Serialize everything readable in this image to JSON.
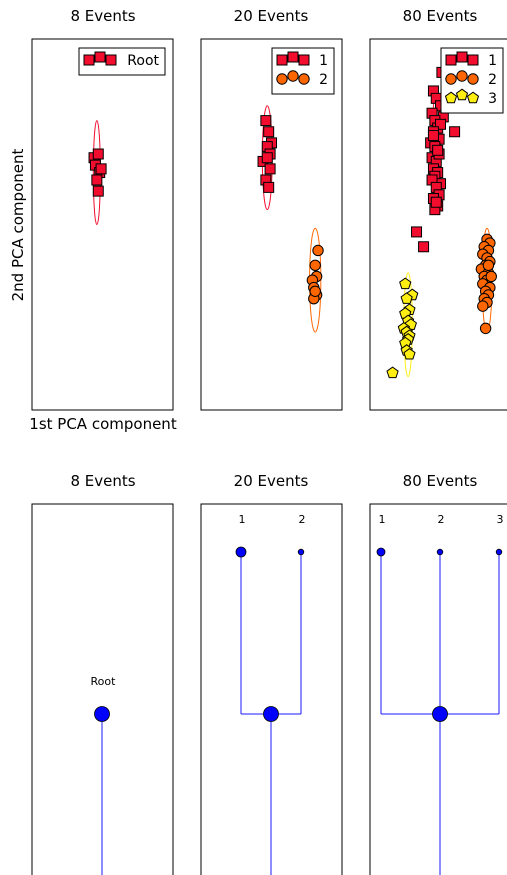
{
  "colors": {
    "cluster_1": "#f20d2e",
    "cluster_2": "#ff6600",
    "cluster_3": "#ffee11",
    "tree_line": "#1a1aff",
    "tree_node": "#0000ff"
  },
  "axes": {
    "xlabel": "1st PCA component",
    "ylabel": "2nd PCA component"
  },
  "chart_data": [
    {
      "type": "scatter",
      "title": "8 Events",
      "xlim": [
        0,
        10
      ],
      "ylim": [
        0,
        10
      ],
      "legend": {
        "placement": "top-right",
        "entries": [
          "Root"
        ]
      },
      "series": [
        {
          "name": "Root",
          "marker": "square",
          "color": "#f20d2e",
          "x": [
            4.4,
            4.7,
            4.5,
            4.8,
            4.6,
            4.9,
            4.7
          ],
          "y": [
            6.8,
            6.9,
            6.6,
            6.4,
            6.2,
            6.5,
            5.9
          ],
          "ellipse": {
            "cx": 4.6,
            "cy": 6.4,
            "rx": 0.25,
            "ry": 1.4
          }
        }
      ]
    },
    {
      "type": "scatter",
      "title": "20 Events",
      "xlim": [
        0,
        10
      ],
      "ylim": [
        0,
        10
      ],
      "legend": {
        "placement": "top-right",
        "entries": [
          "1",
          "2"
        ]
      },
      "series": [
        {
          "name": "1",
          "marker": "square",
          "color": "#f20d2e",
          "x": [
            4.6,
            4.8,
            5.0,
            4.7,
            4.9,
            4.4,
            4.7,
            4.9,
            4.6,
            4.8
          ],
          "y": [
            7.8,
            7.5,
            7.2,
            7.1,
            6.9,
            6.7,
            6.8,
            6.5,
            6.2,
            6.0
          ],
          "ellipse": {
            "cx": 4.7,
            "cy": 6.8,
            "rx": 0.35,
            "ry": 1.4
          }
        },
        {
          "name": "2",
          "marker": "circle",
          "color": "#ff6600",
          "x": [
            8.3,
            8.1,
            8.2,
            7.9,
            8.0,
            8.2,
            8.0,
            8.1
          ],
          "y": [
            4.3,
            3.9,
            3.6,
            3.5,
            3.3,
            3.1,
            3.0,
            3.2
          ],
          "ellipse": {
            "cx": 8.1,
            "cy": 3.5,
            "rx": 0.4,
            "ry": 1.4
          }
        }
      ]
    },
    {
      "type": "scatter",
      "title": "80 Events",
      "xlim": [
        0,
        10
      ],
      "ylim": [
        0,
        10
      ],
      "legend": {
        "placement": "top-right",
        "entries": [
          "1",
          "2",
          "3"
        ]
      },
      "series": [
        {
          "name": "1",
          "marker": "square",
          "color": "#f20d2e",
          "x": [
            4.5,
            4.7,
            5.0,
            5.2,
            4.4,
            4.6,
            4.8,
            5.0,
            4.5,
            4.9,
            4.3,
            4.6,
            4.8,
            4.4,
            4.7,
            4.9,
            4.5,
            4.8,
            4.6,
            5.0,
            4.4,
            4.7,
            4.9,
            4.5,
            4.8,
            4.6,
            4.7,
            4.5,
            4.8,
            5.1,
            6.0,
            3.3,
            3.8
          ],
          "y": [
            8.6,
            8.4,
            8.2,
            7.9,
            8.0,
            7.8,
            7.6,
            7.7,
            7.5,
            7.3,
            7.2,
            7.1,
            6.9,
            6.8,
            6.7,
            6.9,
            6.5,
            6.4,
            6.3,
            6.1,
            6.2,
            6.0,
            5.8,
            5.7,
            5.5,
            5.4,
            5.6,
            7.4,
            7.0,
            9.1,
            7.5,
            4.8,
            4.4
          ],
          "ellipse": {
            "cx": 4.7,
            "cy": 7.0,
            "rx": 0.3,
            "ry": 1.6
          }
        },
        {
          "name": "2",
          "marker": "circle",
          "color": "#ff6600",
          "x": [
            8.3,
            8.5,
            8.1,
            8.4,
            8.0,
            8.3,
            8.5,
            8.2,
            7.9,
            8.4,
            8.1,
            8.3,
            8.0,
            8.5,
            8.2,
            8.4,
            8.1,
            8.3,
            8.0,
            8.6,
            8.2,
            8.4
          ],
          "y": [
            4.6,
            4.5,
            4.4,
            4.3,
            4.2,
            4.1,
            4.0,
            3.9,
            3.8,
            3.7,
            3.6,
            3.5,
            3.4,
            3.3,
            3.2,
            3.1,
            3.0,
            2.9,
            2.8,
            3.6,
            2.2,
            3.9
          ],
          "ellipse": {
            "cx": 8.3,
            "cy": 3.5,
            "rx": 0.35,
            "ry": 1.4
          }
        },
        {
          "name": "3",
          "marker": "pentagon",
          "color": "#ffee11",
          "x": [
            2.5,
            3.0,
            2.6,
            2.8,
            2.5,
            2.7,
            2.9,
            2.4,
            2.6,
            2.8,
            2.7,
            2.5,
            2.6,
            2.8,
            1.6
          ],
          "y": [
            3.4,
            3.1,
            3.0,
            2.7,
            2.6,
            2.4,
            2.3,
            2.2,
            2.1,
            2.0,
            1.9,
            1.8,
            1.6,
            1.5,
            1.0
          ],
          "ellipse": {
            "cx": 2.7,
            "cy": 2.3,
            "rx": 0.3,
            "ry": 1.4
          }
        }
      ]
    },
    {
      "type": "tree",
      "title": "8 Events",
      "nodes": [
        {
          "label": "Root",
          "size": "large"
        }
      ],
      "edges": []
    },
    {
      "type": "tree",
      "title": "20 Events",
      "nodes": [
        {
          "label": "1",
          "size": "medium"
        },
        {
          "label": "2",
          "size": "small"
        }
      ],
      "root_node": {
        "size": "large"
      }
    },
    {
      "type": "tree",
      "title": "80 Events",
      "nodes": [
        {
          "label": "1",
          "size": "medium-small"
        },
        {
          "label": "2",
          "size": "small"
        },
        {
          "label": "3",
          "size": "small"
        }
      ],
      "root_node": {
        "size": "large"
      }
    }
  ]
}
